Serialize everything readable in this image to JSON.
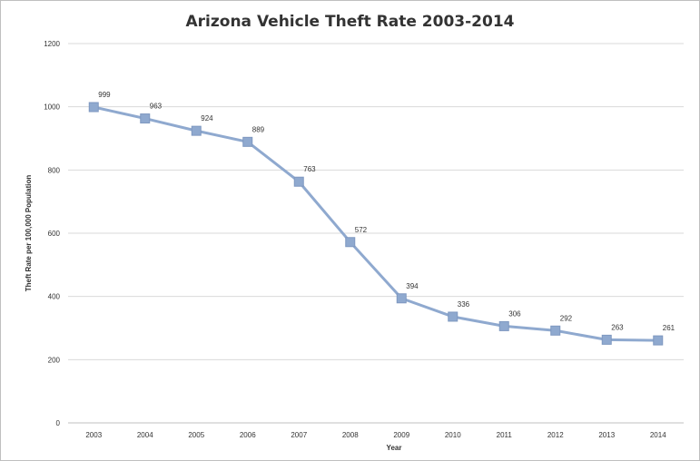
{
  "chart_data": {
    "type": "line",
    "title": "Arizona Vehicle Theft Rate 2003-2014",
    "xlabel": "Year",
    "ylabel": "Theft Rate per 100,000 Population",
    "categories": [
      "2003",
      "2004",
      "2005",
      "2006",
      "2007",
      "2008",
      "2009",
      "2010",
      "2011",
      "2012",
      "2013",
      "2014"
    ],
    "series": [
      {
        "values": [
          999,
          963,
          924,
          889,
          763,
          572,
          394,
          336,
          306,
          292,
          263,
          261
        ],
        "color": "#8fa9cf"
      }
    ],
    "ylim": [
      0,
      1200
    ],
    "yticks": [
      0,
      200,
      400,
      600,
      800,
      1000,
      1200
    ],
    "grid": true,
    "legend": "none",
    "data_labels": true
  }
}
